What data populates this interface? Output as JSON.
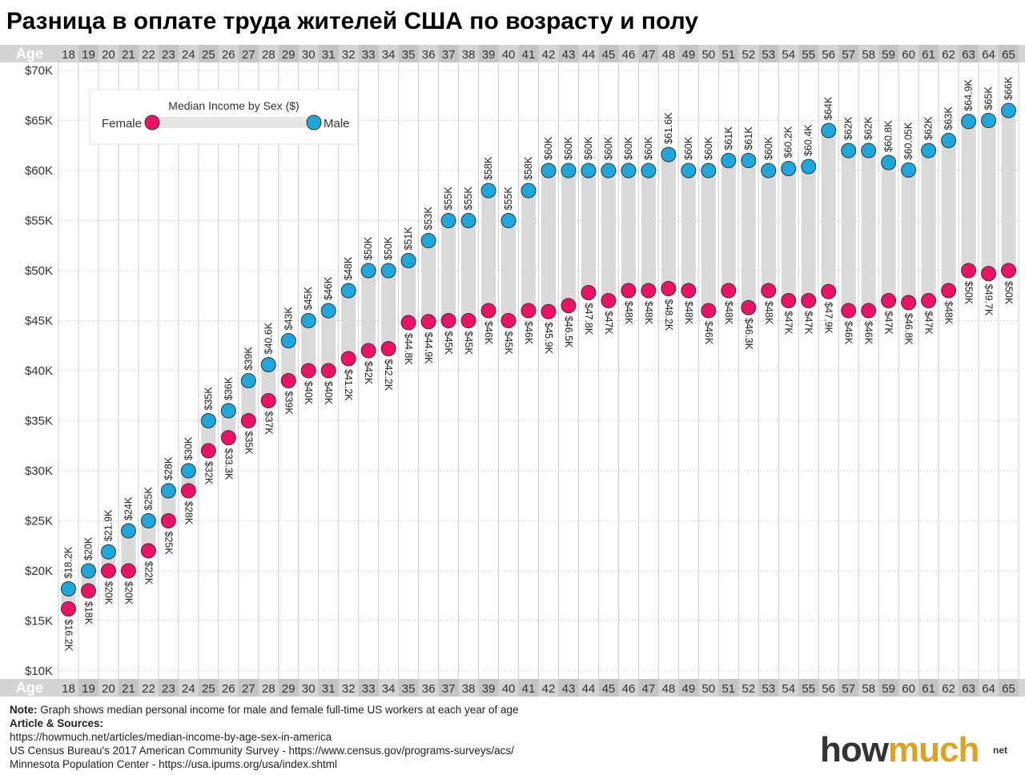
{
  "title": "Разница в оплате труда жителей США по возрасту и полу",
  "age_axis_label": "Age",
  "legend": {
    "title": "Median Income by Sex ($)",
    "female": "Female",
    "male": "Male"
  },
  "colors": {
    "female": "#ee1166",
    "male": "#1da8dd",
    "bar": "#d9d9d9",
    "band": "#d4d4d4"
  },
  "chart_data": {
    "type": "dumbbell",
    "xlabel": "Age",
    "ylim": [
      10000,
      70000
    ],
    "y_ticks": [
      "$10K",
      "$15K",
      "$20K",
      "$25K",
      "$30K",
      "$35K",
      "$40K",
      "$45K",
      "$50K",
      "$55K",
      "$60K",
      "$65K",
      "$70K"
    ],
    "categories": [
      "18",
      "19",
      "20",
      "21",
      "22",
      "23",
      "24",
      "25",
      "26",
      "27",
      "28",
      "29",
      "30",
      "31",
      "32",
      "33",
      "34",
      "35",
      "36",
      "37",
      "38",
      "39",
      "40",
      "41",
      "42",
      "43",
      "44",
      "45",
      "46",
      "47",
      "48",
      "49",
      "50",
      "51",
      "52",
      "53",
      "54",
      "55",
      "56",
      "57",
      "58",
      "59",
      "60",
      "61",
      "62",
      "63",
      "64",
      "65"
    ],
    "series": [
      {
        "name": "Male",
        "values": [
          18200,
          20000,
          21900,
          24000,
          25000,
          28000,
          30000,
          35000,
          36000,
          39000,
          40600,
          43000,
          45000,
          46000,
          48000,
          50000,
          50000,
          51000,
          53000,
          55000,
          55000,
          58000,
          55000,
          58000,
          60000,
          60000,
          60000,
          60000,
          60000,
          60000,
          61600,
          60000,
          60000,
          61000,
          61000,
          60000,
          60200,
          60400,
          64000,
          62000,
          62000,
          60800,
          60050,
          62000,
          63000,
          64900,
          65000,
          66000
        ],
        "labels": [
          "$18.2K",
          "$20K",
          "$21.9K",
          "$24K",
          "$25K",
          "$28K",
          "$30K",
          "$35K",
          "$36K",
          "$39K",
          "$40.6K",
          "$43K",
          "$45K",
          "$46K",
          "$48K",
          "$50K",
          "$50K",
          "$51K",
          "$53K",
          "$55K",
          "$55K",
          "$58K",
          "$55K",
          "$58K",
          "$60K",
          "$60K",
          "$60K",
          "$60K",
          "$60K",
          "$60K",
          "$61.6K",
          "$60K",
          "$60K",
          "$61K",
          "$61K",
          "$60K",
          "$60.2K",
          "$60.4K",
          "$64K",
          "$62K",
          "$62K",
          "$60.8K",
          "$60.05K",
          "$62K",
          "$63K",
          "$64.9K",
          "$65K",
          "$66K"
        ]
      },
      {
        "name": "Female",
        "values": [
          16200,
          18000,
          20000,
          20000,
          22000,
          25000,
          28000,
          32000,
          33300,
          35000,
          37000,
          39000,
          40000,
          40000,
          41200,
          42000,
          42200,
          44800,
          44900,
          45000,
          45000,
          46000,
          45000,
          46000,
          45900,
          46500,
          47800,
          47000,
          48000,
          48000,
          48200,
          48000,
          46000,
          48000,
          46300,
          48000,
          47000,
          47000,
          47900,
          46000,
          46000,
          47000,
          46800,
          47000,
          48000,
          50000,
          49700,
          50000
        ],
        "labels": [
          "$16.2K",
          "$18K",
          "$20K",
          "$20K",
          "$22K",
          "$25K",
          "$28K",
          "$32K",
          "$33.3K",
          "$35K",
          "$37K",
          "$39K",
          "$40K",
          "$40K",
          "$41.2K",
          "$42K",
          "$42.2K",
          "$44.8K",
          "$44.9K",
          "$45K",
          "$45K",
          "$46K",
          "$45K",
          "$46K",
          "$45.9K",
          "$46.5K",
          "$47.8K",
          "$47K",
          "$48K",
          "$48K",
          "$48.2K",
          "$48K",
          "$46K",
          "$48K",
          "$46.3K",
          "$48K",
          "$47K",
          "$47K",
          "$47.9K",
          "$46K",
          "$46K",
          "$47K",
          "$46.8K",
          "$47K",
          "$48K",
          "$50K",
          "$49.7K",
          "$50K"
        ]
      }
    ]
  },
  "footer": {
    "note_label": "Note:",
    "note_text": "Graph shows median personal income for male and female full-time US workers at each year of age",
    "sources_label": "Article & Sources:",
    "source_lines": [
      "https://howmuch.net/articles/median-income-by-age-sex-in-america",
      "US Census Bureau's 2017 American Community Survey - https://www.census.gov/programs-surveys/acs/",
      "Minnesota Population Center - https://usa.ipums.org/usa/index.shtml"
    ]
  },
  "brand": {
    "part1": "how",
    "part2": "much",
    "suffix": "net"
  }
}
